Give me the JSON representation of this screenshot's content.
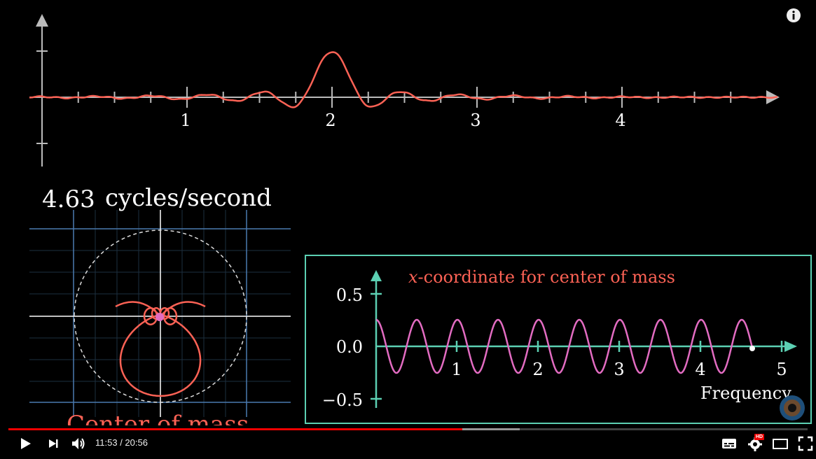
{
  "player": {
    "time_current": "11:53",
    "time_separator": " / ",
    "time_total": "20:56",
    "progress_played": 0.568,
    "progress_loaded": 0.64,
    "hd_badge": "HD",
    "icons": {
      "info": "info-icon",
      "play": "play-icon",
      "next": "next-icon",
      "volume": "volume-icon",
      "subtitles": "subtitles-icon",
      "settings": "gear-icon",
      "theater": "theater-mode-icon",
      "fullscreen": "fullscreen-icon"
    },
    "colors": {
      "played": "#ee0000",
      "accent_red": "#fc6255",
      "accent_teal": "#5cd0b3",
      "pink": "#e36cc2"
    }
  },
  "video": {
    "top_plot": {
      "tick_labels": [
        "1",
        "2",
        "3",
        "4"
      ]
    },
    "winding": {
      "frequency_value": "4.63",
      "frequency_unit": "cycles/second",
      "caption": "Center of mass"
    },
    "inset": {
      "title_italic": "x",
      "title_rest": "-coordinate for center of mass",
      "y_ticks": [
        "0.5",
        "0.0",
        "−0.5"
      ],
      "x_ticks": [
        "1",
        "2",
        "3",
        "4",
        "5"
      ],
      "xlabel": "Frequency"
    }
  }
}
